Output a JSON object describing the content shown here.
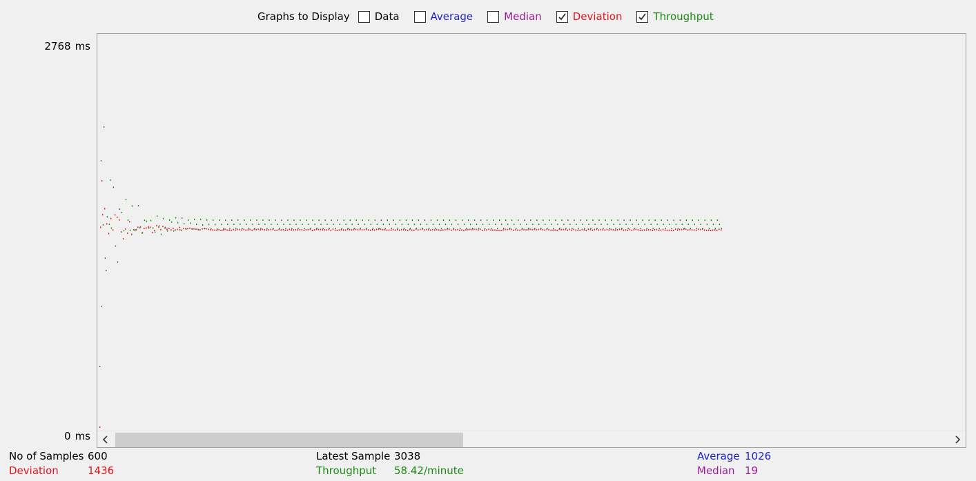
{
  "graphs_to_display": {
    "label": "Graphs to Display",
    "options": [
      {
        "label": "Data",
        "checked": false,
        "color": "#000000"
      },
      {
        "label": "Average",
        "checked": false,
        "color": "#2020d0"
      },
      {
        "label": "Median",
        "checked": false,
        "color": "#9a1a9a"
      },
      {
        "label": "Deviation",
        "checked": true,
        "color": "#e0141e"
      },
      {
        "label": "Throughput",
        "checked": true,
        "color": "#1a8a12"
      }
    ]
  },
  "y_axis": {
    "top_value": "2768",
    "bottom_value": "0",
    "unit": "ms"
  },
  "stats": {
    "samples": {
      "label": "No of Samples",
      "value": "600"
    },
    "deviation": {
      "label": "Deviation",
      "value": "1436"
    },
    "latest": {
      "label": "Latest Sample",
      "value": "3038"
    },
    "throughput": {
      "label": "Throughput",
      "value": "58.42/minute"
    },
    "average": {
      "label": "Average",
      "value": "1026"
    },
    "median": {
      "label": "Median",
      "value": "19"
    }
  },
  "chart_data": {
    "type": "scatter",
    "ylim": [
      0,
      2768
    ],
    "samples": 600,
    "series": [
      {
        "name": "Deviation",
        "color": "#e0141e",
        "final_value": 1436
      },
      {
        "name": "Throughput",
        "color": "#1a8a12",
        "final_value": 58.42
      }
    ]
  }
}
